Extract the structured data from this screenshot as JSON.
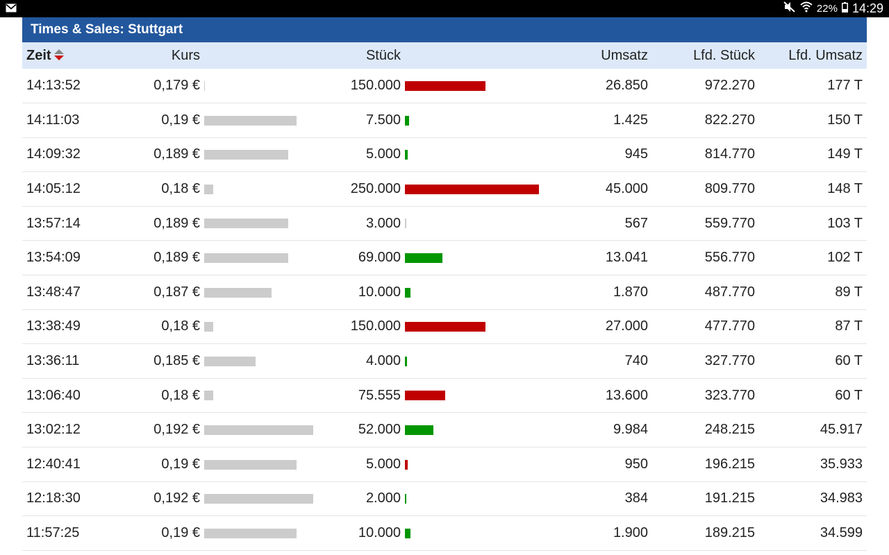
{
  "status_bar": {
    "battery": "22%",
    "clock": "14:29",
    "icons": [
      "mail-icon",
      "mute-icon",
      "wifi-icon",
      "battery-icon"
    ]
  },
  "panel": {
    "title": "Times & Sales: Stuttgart"
  },
  "table": {
    "headers": {
      "zeit": "Zeit",
      "kurs": "Kurs",
      "stueck": "Stück",
      "umsatz": "Umsatz",
      "lfd_stueck": "Lfd. Stück",
      "lfd_umsatz": "Lfd. Umsatz"
    },
    "sort": {
      "column": "Zeit",
      "direction": "descending"
    },
    "colors": {
      "price_bar": "#cccccc",
      "sell": "#c00000",
      "buy": "#009600"
    },
    "rows": [
      {
        "zeit": "14:13:52",
        "kurs": "0,179 €",
        "kurs_level": 0.0,
        "stueck": "150.000",
        "stueck_level": 0.6,
        "side": "red",
        "umsatz": "26.850",
        "lfd_stueck": "972.270",
        "lfd_umsatz": "177 T"
      },
      {
        "zeit": "14:11:03",
        "kurs": "0,19 €",
        "kurs_level": 0.85,
        "stueck": "7.500",
        "stueck_level": 0.03,
        "side": "green",
        "umsatz": "1.425",
        "lfd_stueck": "822.270",
        "lfd_umsatz": "150 T"
      },
      {
        "zeit": "14:09:32",
        "kurs": "0,189 €",
        "kurs_level": 0.77,
        "stueck": "5.000",
        "stueck_level": 0.02,
        "side": "green",
        "umsatz": "945",
        "lfd_stueck": "814.770",
        "lfd_umsatz": "149 T"
      },
      {
        "zeit": "14:05:12",
        "kurs": "0,18 €",
        "kurs_level": 0.08,
        "stueck": "250.000",
        "stueck_level": 1.0,
        "side": "red",
        "umsatz": "45.000",
        "lfd_stueck": "809.770",
        "lfd_umsatz": "148 T"
      },
      {
        "zeit": "13:57:14",
        "kurs": "0,189 €",
        "kurs_level": 0.77,
        "stueck": "3.000",
        "stueck_level": 0.01,
        "side": "gray",
        "umsatz": "567",
        "lfd_stueck": "559.770",
        "lfd_umsatz": "103 T"
      },
      {
        "zeit": "13:54:09",
        "kurs": "0,189 €",
        "kurs_level": 0.77,
        "stueck": "69.000",
        "stueck_level": 0.28,
        "side": "green",
        "umsatz": "13.041",
        "lfd_stueck": "556.770",
        "lfd_umsatz": "102 T"
      },
      {
        "zeit": "13:48:47",
        "kurs": "0,187 €",
        "kurs_level": 0.62,
        "stueck": "10.000",
        "stueck_level": 0.04,
        "side": "green",
        "umsatz": "1.870",
        "lfd_stueck": "487.770",
        "lfd_umsatz": "89 T"
      },
      {
        "zeit": "13:38:49",
        "kurs": "0,18 €",
        "kurs_level": 0.08,
        "stueck": "150.000",
        "stueck_level": 0.6,
        "side": "red",
        "umsatz": "27.000",
        "lfd_stueck": "477.770",
        "lfd_umsatz": "87 T"
      },
      {
        "zeit": "13:36:11",
        "kurs": "0,185 €",
        "kurs_level": 0.47,
        "stueck": "4.000",
        "stueck_level": 0.015,
        "side": "green",
        "umsatz": "740",
        "lfd_stueck": "327.770",
        "lfd_umsatz": "60 T"
      },
      {
        "zeit": "13:06:40",
        "kurs": "0,18 €",
        "kurs_level": 0.08,
        "stueck": "75.555",
        "stueck_level": 0.3,
        "side": "red",
        "umsatz": "13.600",
        "lfd_stueck": "323.770",
        "lfd_umsatz": "60 T"
      },
      {
        "zeit": "13:02:12",
        "kurs": "0,192 €",
        "kurs_level": 1.0,
        "stueck": "52.000",
        "stueck_level": 0.21,
        "side": "green",
        "umsatz": "9.984",
        "lfd_stueck": "248.215",
        "lfd_umsatz": "45.917"
      },
      {
        "zeit": "12:40:41",
        "kurs": "0,19 €",
        "kurs_level": 0.85,
        "stueck": "5.000",
        "stueck_level": 0.02,
        "side": "red",
        "umsatz": "950",
        "lfd_stueck": "196.215",
        "lfd_umsatz": "35.933"
      },
      {
        "zeit": "12:18:30",
        "kurs": "0,192 €",
        "kurs_level": 1.0,
        "stueck": "2.000",
        "stueck_level": 0.01,
        "side": "green",
        "umsatz": "384",
        "lfd_stueck": "191.215",
        "lfd_umsatz": "34.983"
      },
      {
        "zeit": "11:57:25",
        "kurs": "0,19 €",
        "kurs_level": 0.85,
        "stueck": "10.000",
        "stueck_level": 0.04,
        "side": "green",
        "umsatz": "1.900",
        "lfd_stueck": "189.215",
        "lfd_umsatz": "34.599"
      }
    ]
  }
}
